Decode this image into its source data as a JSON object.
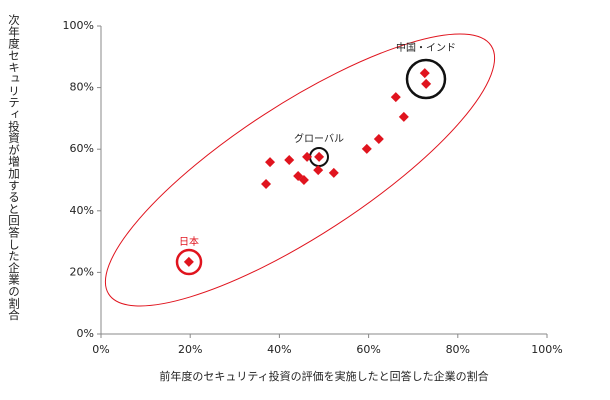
{
  "chart_data": {
    "type": "scatter",
    "x_label": "前年度のセキュリティ投資の評価を実施したと回答した企業の割合",
    "y_label": "次年度セキュリティ投資が増加すると回答した企業の割合",
    "color": "#e0141e",
    "x": [
      19.7,
      37,
      37.9,
      42.2,
      44.2,
      45.5,
      46.2,
      48.7,
      48.9,
      52.2,
      59.6,
      62.3,
      66.1,
      67.9,
      72.6,
      72.9
    ],
    "values": [
      23.4,
      48.7,
      55.8,
      56.5,
      51.3,
      50,
      57.5,
      53.2,
      57.5,
      52.3,
      60.1,
      63.3,
      76.9,
      70.5,
      84.7,
      81.2
    ],
    "xlim": [
      0,
      100
    ],
    "ylim": [
      0,
      100
    ],
    "xticks": [
      {
        "value": 0,
        "label": "0%"
      },
      {
        "value": 20,
        "label": "20%"
      },
      {
        "value": 40,
        "label": "40%"
      },
      {
        "value": 60,
        "label": "60%"
      },
      {
        "value": 80,
        "label": "80%"
      },
      {
        "value": 100,
        "label": "100%"
      }
    ],
    "yticks": [
      {
        "value": 0,
        "label": "0%"
      },
      {
        "value": 20,
        "label": "20%"
      },
      {
        "value": 40,
        "label": "40%"
      },
      {
        "value": 60,
        "label": "60%"
      },
      {
        "value": 80,
        "label": "80%"
      },
      {
        "value": 100,
        "label": "100%"
      }
    ],
    "annotations": [
      "中国・インド",
      "グローバル",
      "日本"
    ]
  }
}
